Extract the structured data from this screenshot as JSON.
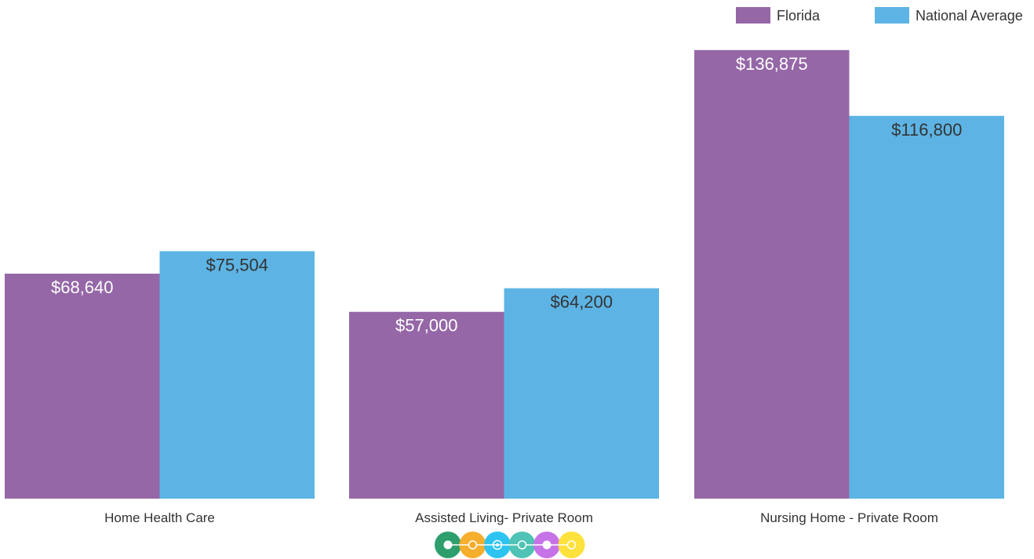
{
  "chart_data": {
    "type": "bar",
    "categories": [
      "Home Health Care",
      "Assisted Living- Private Room",
      "Nursing Home - Private Room"
    ],
    "series": [
      {
        "name": "Florida",
        "color": "#9567a7",
        "label_color": "#ffffff",
        "values": [
          68640,
          57000,
          136875
        ],
        "labels": [
          "$68,640",
          "$57,000",
          "$136,875"
        ]
      },
      {
        "name": "National Average",
        "color": "#5db4e4",
        "label_color": "#333333",
        "values": [
          75504,
          64200,
          116800
        ],
        "labels": [
          "$75,504",
          "$64,200",
          "$116,800"
        ]
      }
    ],
    "ylim": [
      0,
      150000
    ],
    "grid": false,
    "legend_position": "top-right"
  },
  "decoration": {
    "icon": "timeline-dots-icon",
    "colors": [
      "#2e9e6c",
      "#f6ae2d",
      "#2ec4f1",
      "#4fc3b5",
      "#c773e8",
      "#fde13c"
    ]
  }
}
